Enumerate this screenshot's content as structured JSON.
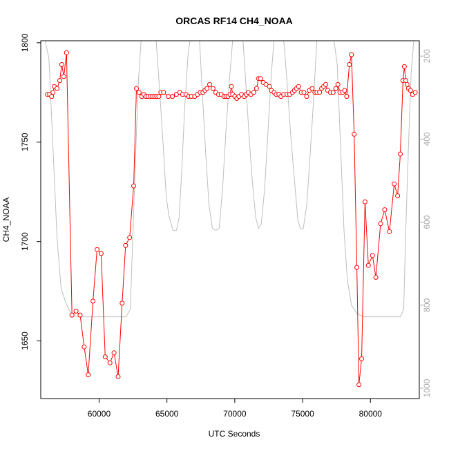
{
  "chart_data": {
    "type": "line",
    "title": "ORCAS RF14 CH4_NOAA",
    "xlabel": "UTC Seconds",
    "ylabel": "CH4_NOAA",
    "xlim": [
      55700,
      83600
    ],
    "ylim": [
      1621,
      1801
    ],
    "x_ticks": [
      60000,
      65000,
      70000,
      75000,
      80000
    ],
    "y_ticks": [
      1650,
      1700,
      1750,
      1800
    ],
    "y2lim": [
      1025,
      163
    ],
    "y2_ticks": [
      200,
      400,
      600,
      800,
      1000
    ],
    "colors": {
      "series": "#ff0000",
      "secondary": "#bebebe",
      "axis": "#000000",
      "axis2": "#aaaaaa"
    },
    "series": [
      {
        "values": [
          [
            56200,
            1774
          ],
          [
            56350,
            1774
          ],
          [
            56500,
            1773
          ],
          [
            56600,
            1775
          ],
          [
            56700,
            1778
          ],
          [
            56900,
            1777
          ],
          [
            57100,
            1781
          ],
          [
            57250,
            1789
          ],
          [
            57400,
            1783
          ],
          [
            57600,
            1795
          ],
          [
            58000,
            1663
          ],
          [
            58300,
            1665
          ],
          [
            58600,
            1663
          ],
          [
            58900,
            1647
          ],
          [
            59200,
            1633
          ],
          [
            59550,
            1670
          ],
          [
            59850,
            1696
          ],
          [
            60150,
            1694
          ],
          [
            60450,
            1642
          ],
          [
            60800,
            1639
          ],
          [
            61100,
            1644
          ],
          [
            61400,
            1632
          ],
          [
            61700,
            1669
          ],
          [
            61950,
            1698
          ],
          [
            62250,
            1702
          ],
          [
            62550,
            1728
          ],
          [
            62750,
            1777
          ],
          [
            62950,
            1775
          ],
          [
            63150,
            1773
          ],
          [
            63300,
            1774
          ],
          [
            63450,
            1773
          ],
          [
            63600,
            1773
          ],
          [
            63800,
            1773
          ],
          [
            63950,
            1773
          ],
          [
            64100,
            1773
          ],
          [
            64250,
            1773
          ],
          [
            64400,
            1773
          ],
          [
            64550,
            1775
          ],
          [
            64750,
            1775
          ],
          [
            65100,
            1773
          ],
          [
            65400,
            1773
          ],
          [
            65700,
            1774
          ],
          [
            65950,
            1775
          ],
          [
            66150,
            1774
          ],
          [
            66400,
            1774
          ],
          [
            66600,
            1773
          ],
          [
            66800,
            1773
          ],
          [
            67050,
            1773
          ],
          [
            67250,
            1774
          ],
          [
            67450,
            1775
          ],
          [
            67650,
            1775
          ],
          [
            67800,
            1776
          ],
          [
            67950,
            1777
          ],
          [
            68150,
            1779
          ],
          [
            68400,
            1777
          ],
          [
            68600,
            1775
          ],
          [
            68800,
            1774
          ],
          [
            69000,
            1774
          ],
          [
            69200,
            1773
          ],
          [
            69350,
            1773
          ],
          [
            69500,
            1773
          ],
          [
            69650,
            1774
          ],
          [
            69750,
            1778
          ],
          [
            69850,
            1774
          ],
          [
            70000,
            1773
          ],
          [
            70150,
            1772
          ],
          [
            70300,
            1773
          ],
          [
            70500,
            1774
          ],
          [
            70700,
            1773
          ],
          [
            70850,
            1774
          ],
          [
            71000,
            1775
          ],
          [
            71200,
            1774
          ],
          [
            71400,
            1775
          ],
          [
            71600,
            1777
          ],
          [
            71750,
            1782
          ],
          [
            71900,
            1782
          ],
          [
            72100,
            1780
          ],
          [
            72300,
            1779
          ],
          [
            72550,
            1778
          ],
          [
            72700,
            1776
          ],
          [
            72900,
            1775
          ],
          [
            73050,
            1774
          ],
          [
            73250,
            1774
          ],
          [
            73400,
            1773
          ],
          [
            73600,
            1774
          ],
          [
            73850,
            1774
          ],
          [
            74050,
            1774
          ],
          [
            74250,
            1775
          ],
          [
            74400,
            1776
          ],
          [
            74550,
            1777
          ],
          [
            74700,
            1778
          ],
          [
            74900,
            1775
          ],
          [
            75100,
            1775
          ],
          [
            75300,
            1773
          ],
          [
            75500,
            1776
          ],
          [
            75700,
            1777
          ],
          [
            75900,
            1775
          ],
          [
            76050,
            1775
          ],
          [
            76250,
            1775
          ],
          [
            76400,
            1777
          ],
          [
            76550,
            1778
          ],
          [
            76700,
            1779
          ],
          [
            76850,
            1776
          ],
          [
            77050,
            1775
          ],
          [
            77250,
            1775
          ],
          [
            77450,
            1777
          ],
          [
            77600,
            1779
          ],
          [
            77750,
            1775
          ],
          [
            77950,
            1775
          ],
          [
            78100,
            1776
          ],
          [
            78250,
            1773
          ],
          [
            78450,
            1789
          ],
          [
            78600,
            1794
          ],
          [
            78800,
            1754
          ],
          [
            79000,
            1687
          ],
          [
            79150,
            1628
          ],
          [
            79350,
            1641
          ],
          [
            79600,
            1720
          ],
          [
            79850,
            1688
          ],
          [
            80150,
            1693
          ],
          [
            80400,
            1682
          ],
          [
            80750,
            1709
          ],
          [
            81050,
            1716
          ],
          [
            81400,
            1705
          ],
          [
            81750,
            1729
          ],
          [
            82000,
            1723
          ],
          [
            82200,
            1744
          ],
          [
            82400,
            1781
          ],
          [
            82500,
            1788
          ],
          [
            82600,
            1781
          ],
          [
            82700,
            1779
          ],
          [
            82800,
            1777
          ],
          [
            82950,
            1776
          ],
          [
            83100,
            1774
          ],
          [
            83300,
            1775
          ]
        ]
      }
    ],
    "secondary_series": {
      "axis": "right",
      "values": [
        [
          56000,
          160
        ],
        [
          56300,
          205
        ],
        [
          56600,
          420
        ],
        [
          56900,
          640
        ],
        [
          57200,
          760
        ],
        [
          57500,
          790
        ],
        [
          57800,
          812
        ],
        [
          58100,
          825
        ],
        [
          58400,
          828
        ],
        [
          59000,
          828
        ],
        [
          60000,
          828
        ],
        [
          61000,
          828
        ],
        [
          62000,
          828
        ],
        [
          62300,
          810
        ],
        [
          62500,
          620
        ],
        [
          62700,
          430
        ],
        [
          62900,
          260
        ],
        [
          63100,
          160
        ],
        [
          64200,
          160
        ],
        [
          64500,
          300
        ],
        [
          64750,
          430
        ],
        [
          64950,
          540
        ],
        [
          65150,
          585
        ],
        [
          65450,
          620
        ],
        [
          65700,
          620
        ],
        [
          65900,
          590
        ],
        [
          66100,
          470
        ],
        [
          66300,
          330
        ],
        [
          66550,
          200
        ],
        [
          66700,
          160
        ],
        [
          67400,
          160
        ],
        [
          67600,
          280
        ],
        [
          67850,
          430
        ],
        [
          68100,
          560
        ],
        [
          68350,
          615
        ],
        [
          68600,
          620
        ],
        [
          68850,
          615
        ],
        [
          69100,
          520
        ],
        [
          69350,
          380
        ],
        [
          69600,
          260
        ],
        [
          69850,
          160
        ],
        [
          70600,
          160
        ],
        [
          70800,
          260
        ],
        [
          71050,
          390
        ],
        [
          71300,
          505
        ],
        [
          71550,
          590
        ],
        [
          71750,
          615
        ],
        [
          71950,
          605
        ],
        [
          72200,
          520
        ],
        [
          72450,
          380
        ],
        [
          72700,
          240
        ],
        [
          72900,
          160
        ],
        [
          73600,
          160
        ],
        [
          73850,
          260
        ],
        [
          74100,
          380
        ],
        [
          74350,
          480
        ],
        [
          74650,
          595
        ],
        [
          74850,
          617
        ],
        [
          75050,
          615
        ],
        [
          75300,
          560
        ],
        [
          75550,
          440
        ],
        [
          75800,
          310
        ],
        [
          76050,
          160
        ],
        [
          77300,
          160
        ],
        [
          77550,
          220
        ],
        [
          77800,
          420
        ],
        [
          78050,
          620
        ],
        [
          78300,
          740
        ],
        [
          78600,
          800
        ],
        [
          79000,
          820
        ],
        [
          79500,
          828
        ],
        [
          80500,
          828
        ],
        [
          81500,
          828
        ],
        [
          82200,
          828
        ],
        [
          82450,
          810
        ],
        [
          82600,
          620
        ],
        [
          82800,
          420
        ],
        [
          83000,
          240
        ],
        [
          83200,
          160
        ]
      ]
    }
  }
}
